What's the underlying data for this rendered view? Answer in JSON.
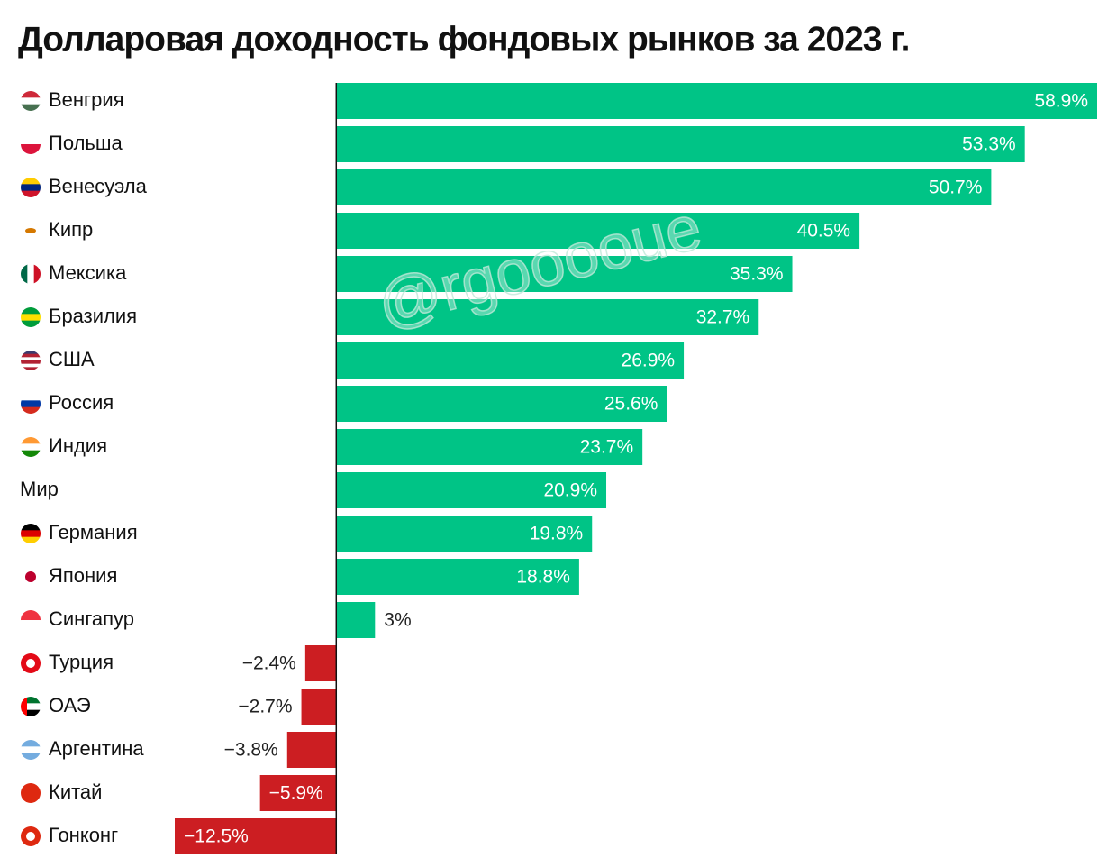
{
  "chart_data": {
    "type": "bar",
    "orientation": "horizontal",
    "title": "Долларовая доходность фондовых рынков за 2023 г.",
    "watermark": "@rgooooue",
    "categories": [
      "Венгрия",
      "Польша",
      "Венесуэла",
      "Кипр",
      "Мексика",
      "Бразилия",
      "США",
      "Россия",
      "Индия",
      "Мир",
      "Германия",
      "Япония",
      "Сингапур",
      "Турция",
      "ОАЭ",
      "Аргентина",
      "Китай",
      "Гонконг"
    ],
    "values": [
      58.9,
      53.3,
      50.7,
      40.5,
      35.3,
      32.7,
      26.9,
      25.6,
      23.7,
      20.9,
      19.8,
      18.8,
      3,
      -2.4,
      -2.7,
      -3.8,
      -5.9,
      -12.5
    ],
    "value_labels": [
      "58.9%",
      "53.3%",
      "50.7%",
      "40.5%",
      "35.3%",
      "32.7%",
      "26.9%",
      "25.6%",
      "23.7%",
      "20.9%",
      "19.8%",
      "18.8%",
      "3%",
      "−2.4%",
      "−2.7%",
      "−3.8%",
      "−5.9%",
      "−12.5%"
    ],
    "positive_color": "#00c486",
    "negative_color": "#cc1e22",
    "xlim": [
      -12.5,
      58.9
    ]
  }
}
